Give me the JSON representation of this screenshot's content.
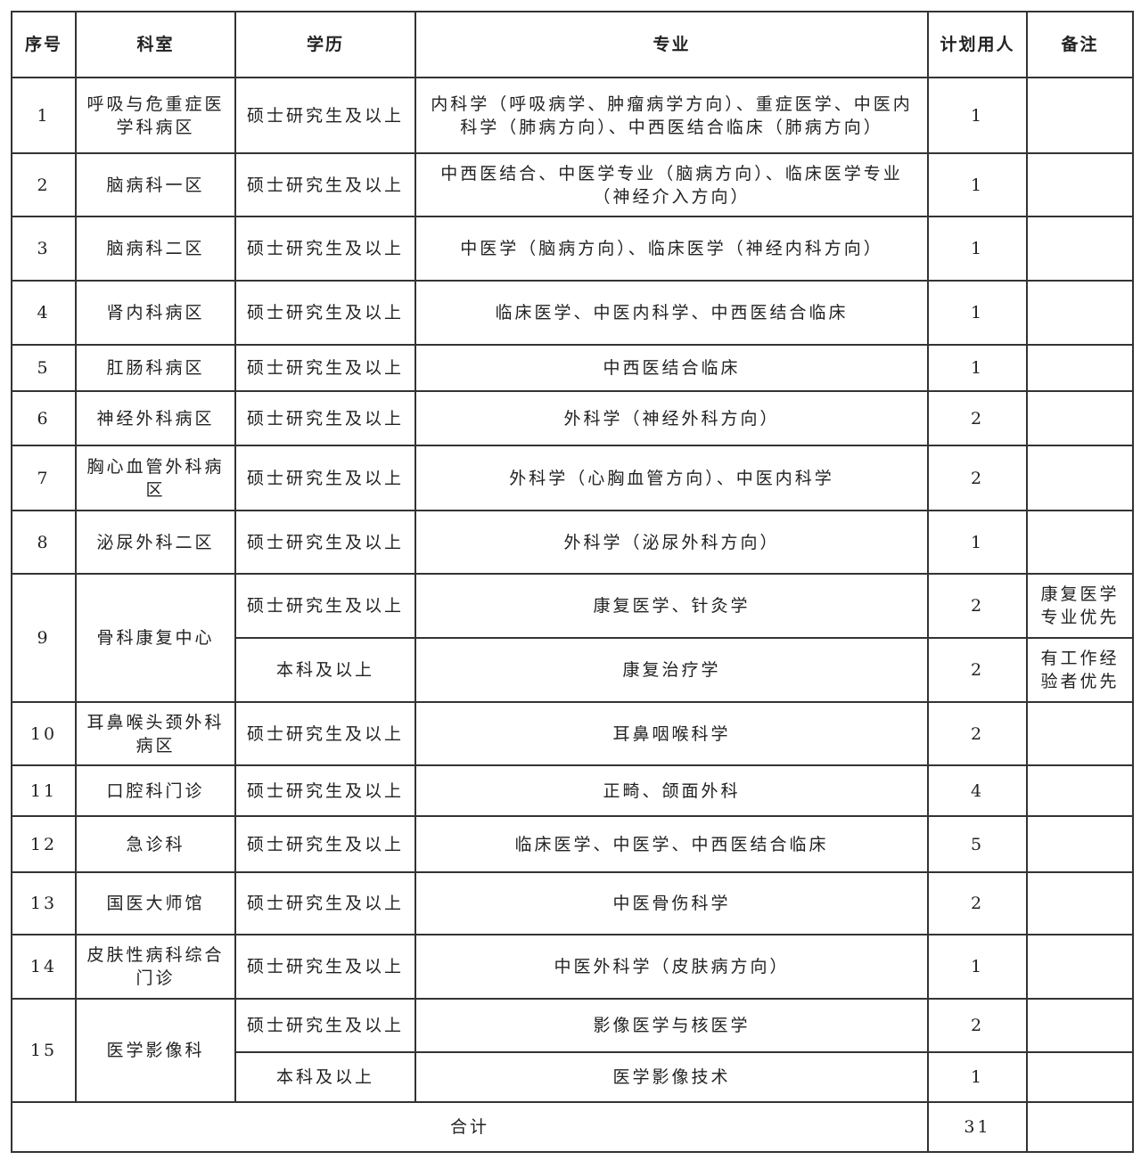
{
  "headers": [
    "序号",
    "科室",
    "学历",
    "专业",
    "计划用人",
    "备注"
  ],
  "rows": [
    {
      "no": "1",
      "dept": "呼吸与危重症医学科病区",
      "subs": [
        {
          "edu": "硕士研究生及以上",
          "major": "内科学（呼吸病学、肿瘤病学方向）、重症医学、中医内科学（肺病方向）、中西医结合临床（肺病方向）",
          "count": "1",
          "note": ""
        }
      ]
    },
    {
      "no": "2",
      "dept": "脑病科一区",
      "subs": [
        {
          "edu": "硕士研究生及以上",
          "major": "中西医结合、中医学专业（脑病方向）、临床医学专业（神经介入方向）",
          "count": "1",
          "note": ""
        }
      ]
    },
    {
      "no": "3",
      "dept": "脑病科二区",
      "subs": [
        {
          "edu": "硕士研究生及以上",
          "major": "中医学（脑病方向）、临床医学（神经内科方向）",
          "count": "1",
          "note": ""
        }
      ]
    },
    {
      "no": "4",
      "dept": "肾内科病区",
      "subs": [
        {
          "edu": "硕士研究生及以上",
          "major": "临床医学、中医内科学、中西医结合临床",
          "count": "1",
          "note": ""
        }
      ]
    },
    {
      "no": "5",
      "dept": "肛肠科病区",
      "subs": [
        {
          "edu": "硕士研究生及以上",
          "major": "中西医结合临床",
          "count": "1",
          "note": ""
        }
      ]
    },
    {
      "no": "6",
      "dept": "神经外科病区",
      "subs": [
        {
          "edu": "硕士研究生及以上",
          "major": "外科学（神经外科方向）",
          "count": "2",
          "note": ""
        }
      ]
    },
    {
      "no": "7",
      "dept": "胸心血管外科病区",
      "subs": [
        {
          "edu": "硕士研究生及以上",
          "major": "外科学（心胸血管方向）、中医内科学",
          "count": "2",
          "note": ""
        }
      ]
    },
    {
      "no": "8",
      "dept": "泌尿外科二区",
      "subs": [
        {
          "edu": "硕士研究生及以上",
          "major": "外科学（泌尿外科方向）",
          "count": "1",
          "note": ""
        }
      ]
    },
    {
      "no": "9",
      "dept": "骨科康复中心",
      "subs": [
        {
          "edu": "硕士研究生及以上",
          "major": "康复医学、针灸学",
          "count": "2",
          "note": "康复医学专业优先"
        },
        {
          "edu": "本科及以上",
          "major": "康复治疗学",
          "count": "2",
          "note": "有工作经验者优先"
        }
      ]
    },
    {
      "no": "10",
      "dept": "耳鼻喉头颈外科病区",
      "subs": [
        {
          "edu": "硕士研究生及以上",
          "major": "耳鼻咽喉科学",
          "count": "2",
          "note": ""
        }
      ]
    },
    {
      "no": "11",
      "dept": "口腔科门诊",
      "subs": [
        {
          "edu": "硕士研究生及以上",
          "major": "正畸、颌面外科",
          "count": "4",
          "note": ""
        }
      ]
    },
    {
      "no": "12",
      "dept": "急诊科",
      "subs": [
        {
          "edu": "硕士研究生及以上",
          "major": "临床医学、中医学、中西医结合临床",
          "count": "5",
          "note": ""
        }
      ]
    },
    {
      "no": "13",
      "dept": "国医大师馆",
      "subs": [
        {
          "edu": "硕士研究生及以上",
          "major": "中医骨伤科学",
          "count": "2",
          "note": ""
        }
      ]
    },
    {
      "no": "14",
      "dept": "皮肤性病科综合门诊",
      "subs": [
        {
          "edu": "硕士研究生及以上",
          "major": "中医外科学（皮肤病方向）",
          "count": "1",
          "note": ""
        }
      ]
    },
    {
      "no": "15",
      "dept": "医学影像科",
      "subs": [
        {
          "edu": "硕士研究生及以上",
          "major": "影像医学与核医学",
          "count": "2",
          "note": ""
        },
        {
          "edu": "本科及以上",
          "major": "医学影像技术",
          "count": "1",
          "note": ""
        }
      ]
    }
  ],
  "total": {
    "label": "合计",
    "count": "31"
  }
}
